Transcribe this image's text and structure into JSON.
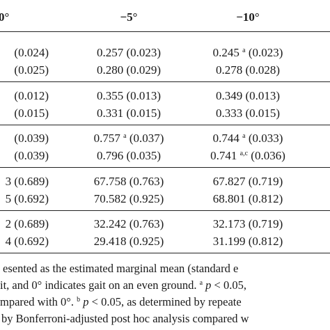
{
  "table": {
    "header": [
      "0°",
      "−5°",
      "−10°"
    ],
    "rows": [
      [
        {
          "se": "(0.024)"
        },
        {
          "value": "0.257",
          "se": "(0.023)"
        },
        {
          "value": "0.245",
          "sup": "a",
          "se": "(0.023)"
        }
      ],
      [
        {
          "se": "(0.025)"
        },
        {
          "value": "0.280",
          "se": "(0.029)"
        },
        {
          "value": "0.278",
          "se": "(0.028)"
        }
      ],
      [
        {
          "se": "(0.012)"
        },
        {
          "value": "0.355",
          "se": "(0.013)"
        },
        {
          "value": "0.349",
          "se": "(0.013)"
        }
      ],
      [
        {
          "se": "(0.015)"
        },
        {
          "value": "0.331",
          "se": "(0.015)"
        },
        {
          "value": "0.333",
          "se": "(0.015)"
        }
      ],
      [
        {
          "se": "(0.039)"
        },
        {
          "value": "0.757",
          "sup": "a",
          "se": "(0.037)"
        },
        {
          "value": "0.744",
          "sup": "a",
          "se": "(0.033)"
        }
      ],
      [
        {
          "se": "(0.039)"
        },
        {
          "value": "0.796",
          "se": "(0.035)"
        },
        {
          "value": "0.741",
          "sup": "a,c",
          "se": "(0.036)"
        }
      ],
      [
        {
          "value": "3",
          "se": "(0.689)"
        },
        {
          "value": "67.758",
          "se": "(0.763)"
        },
        {
          "value": "67.827",
          "se": "(0.719)"
        }
      ],
      [
        {
          "value": "5",
          "se": "(0.692)"
        },
        {
          "value": "70.582",
          "se": "(0.925)"
        },
        {
          "value": "68.801",
          "se": "(0.812)"
        }
      ],
      [
        {
          "value": "2",
          "se": "(0.689)"
        },
        {
          "value": "32.242",
          "se": "(0.763)"
        },
        {
          "value": "32.173",
          "se": "(0.719)"
        }
      ],
      [
        {
          "value": "4",
          "se": "(0.692)"
        },
        {
          "value": "29.418",
          "se": "(0.925)"
        },
        {
          "value": "31.199",
          "se": "(0.812)"
        }
      ]
    ]
  },
  "footnote": [
    [
      {
        "t": "esented as the estimated marginal mean (standard e"
      }
    ],
    [
      {
        "t": "it, and 0° indicates gait on an even ground. "
      },
      {
        "sup": "a"
      },
      {
        "t": " "
      },
      {
        "i": "p"
      },
      {
        "t": " < 0.05,"
      }
    ],
    [
      {
        "t": "mpared with 0°. "
      },
      {
        "sup": "b"
      },
      {
        "t": " "
      },
      {
        "i": "p"
      },
      {
        "t": " < 0.05, as determined by repeate"
      }
    ],
    [
      {
        "t": "by Bonferroni-adjusted post hoc analysis compared w"
      }
    ]
  ]
}
